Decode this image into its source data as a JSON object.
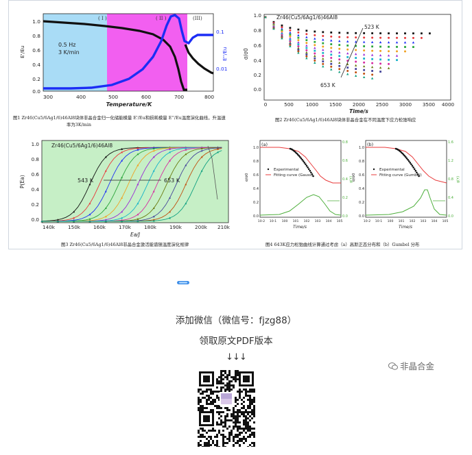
{
  "fig1": {
    "caption_line1": "图1 Zr46(Cu5/6Ag1/6)46Al8块体非晶合金归一化储能模量 E'/Eu和损耗模量 E''/Eu温度演化曲线，升温速",
    "caption_line2": "率为3K/min",
    "freq_label": "0.5 Hz",
    "rate_label": "3 K/min",
    "regions": [
      "( I )",
      "( II )",
      "(III)"
    ],
    "xlabel": "Temperature/K",
    "ylabel_left": "E'/Eu",
    "ylabel_right": "E''/Eu",
    "x_ticks": [
      "300",
      "400",
      "500",
      "600",
      "700",
      "800"
    ],
    "y_ticks_left": [
      "0.0",
      "0.2",
      "0.4",
      "0.6",
      "0.8",
      "1.0"
    ],
    "y_ticks_right": [
      "0.1",
      "0.01"
    ]
  },
  "fig2": {
    "caption": "图2 Zr46(Cu5/6Ag1/6)46Al8块体非晶合金在不同温度下应力松弛响应",
    "title": "Zr46(Cu5/6Ag1/6)46Al8",
    "ylabel": "σ/σ0",
    "xlabel": "Time/s",
    "high_label": "523 K",
    "low_label": "653 K",
    "x_ticks": [
      "0",
      "500",
      "1000",
      "1500",
      "2000",
      "2500",
      "3000",
      "3500",
      "4000"
    ],
    "y_ticks": [
      "0.0",
      "0.2",
      "0.4",
      "0.6",
      "0.8",
      "1.0"
    ]
  },
  "fig3": {
    "caption": "图3 Zr46(Cu5/6Ag1/6)46Al8非晶合金激活能谱随温度演化规律",
    "title": "Zr46(Cu5/6Ag1/6)46Al8",
    "ylabel": "P(Ea)",
    "xlabel": "Ea/J",
    "low_label": "543 K",
    "high_label": "653 K",
    "x_ticks": [
      "140k",
      "150k",
      "160k",
      "170k",
      "180k",
      "190k",
      "200k",
      "210k"
    ],
    "y_ticks": [
      "0.0",
      "0.2",
      "0.4",
      "0.6",
      "0.8",
      "1.0"
    ]
  },
  "fig4": {
    "caption": "图4 643K应力松弛曲线计算通过考虑（a）高斯正态分布和（b）Gumbel 分布",
    "panel_a": "(a)",
    "panel_b": "(b)",
    "legend_exp": "Experimental",
    "legend_fit_a": "Fitting curve (Gauss)",
    "legend_fit_b": "Fitting curve (Gumbel)",
    "ylabel": "σ/σ0",
    "ylabel_right": "g(τ)",
    "xlabel": "Time/s",
    "x_ticks": [
      "10-2",
      "10-1",
      "100",
      "101",
      "102",
      "103",
      "104",
      "105"
    ],
    "y_ticks": [
      "0.0",
      "0.2",
      "0.4",
      "0.6",
      "0.8",
      "1.0"
    ],
    "right_ticks_a": [
      "0.0",
      "0.2",
      "0.4",
      "0.6",
      "0.8"
    ],
    "right_ticks_b": [
      "0.0",
      "0.4",
      "0.8",
      "1.2",
      "1.6"
    ]
  },
  "footer": {
    "line1": "添加微信（微信号：fjzg88）",
    "line2": "领取原文PDF版本",
    "arrows": "↓↓↓",
    "brand": "非晶合金"
  },
  "colors": {
    "region1": "#a9dcf6",
    "region2": "#f25ff0",
    "fig3_bg": "#c6efc6",
    "storage": "#111111",
    "loss": "#1c2df5",
    "fit": "#e8393a",
    "gdist": "#4cae3a",
    "accent_pill": "#3e8ee8"
  }
}
